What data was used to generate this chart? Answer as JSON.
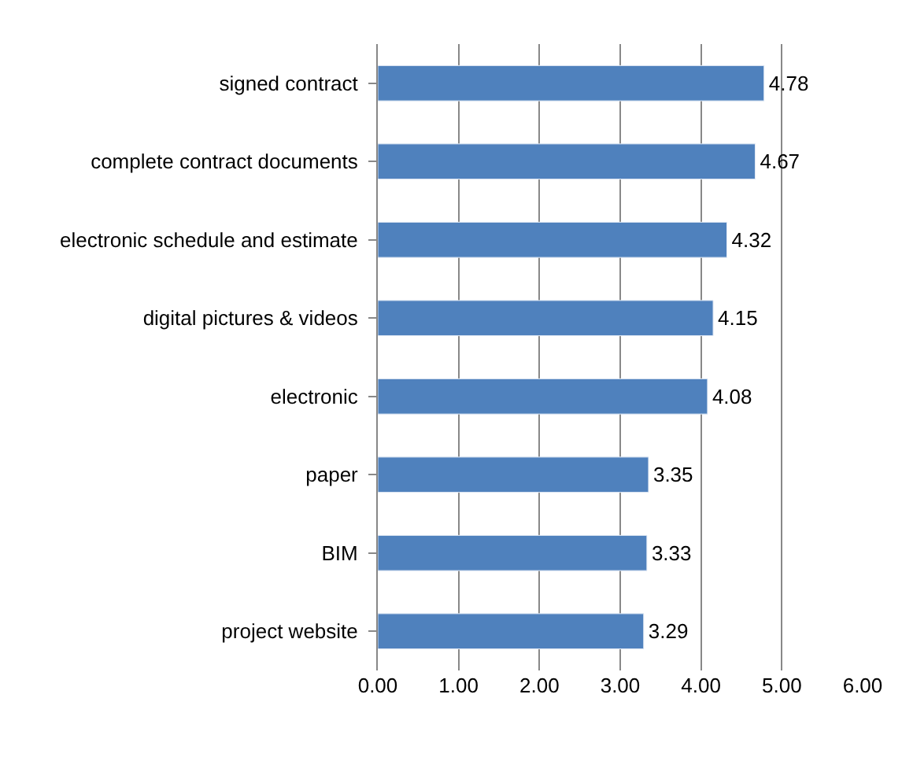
{
  "chart_data": {
    "type": "bar",
    "orientation": "horizontal",
    "categories": [
      "signed contract",
      "complete contract documents",
      "electronic schedule and estimate",
      "digital pictures & videos",
      "electronic",
      "paper",
      "BIM",
      "project website"
    ],
    "values": [
      4.78,
      4.67,
      4.32,
      4.15,
      4.08,
      3.35,
      3.33,
      3.29
    ],
    "color": "#4f81bd",
    "xlim": [
      0,
      6
    ],
    "xticks": [
      {
        "value": 0,
        "label": "0.00"
      },
      {
        "value": 1,
        "label": "1.00"
      },
      {
        "value": 2,
        "label": "2.00"
      },
      {
        "value": 3,
        "label": "3.00"
      },
      {
        "value": 4,
        "label": "4.00"
      },
      {
        "value": 5,
        "label": "5.00"
      },
      {
        "value": 6,
        "label": "6.00"
      }
    ],
    "grid": "x",
    "data_labels": true,
    "legend": false
  }
}
